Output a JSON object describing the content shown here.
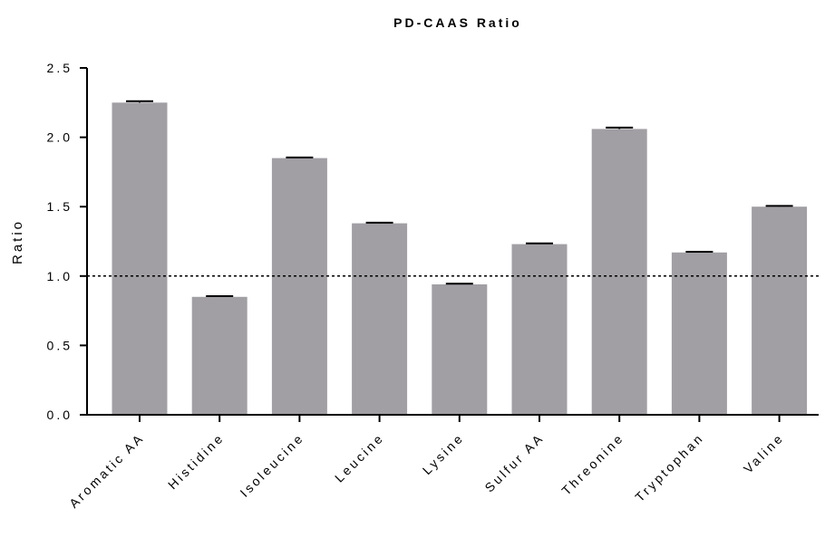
{
  "chart_data": {
    "type": "bar",
    "title": "PD-CAAS Ratio",
    "xlabel": "",
    "ylabel": "Ratio",
    "ylim": [
      0,
      2.5
    ],
    "yticks": [
      "0.0",
      "0.5",
      "1.0",
      "1.5",
      "2.0",
      "2.5"
    ],
    "reference_line": 1.0,
    "categories": [
      "Aromatic AA",
      "Histidine",
      "Isoleucine",
      "Leucine",
      "Lysine",
      "Sulfur AA",
      "Threonine",
      "Tryptophan",
      "Valine"
    ],
    "values": [
      2.25,
      0.85,
      1.85,
      1.38,
      0.94,
      1.23,
      2.06,
      1.17,
      1.5
    ],
    "errors": [
      0.01,
      0.005,
      0.005,
      0.005,
      0.005,
      0.005,
      0.01,
      0.005,
      0.005
    ],
    "bar_color": "#a19fa4",
    "grid": false,
    "legend": "none"
  }
}
